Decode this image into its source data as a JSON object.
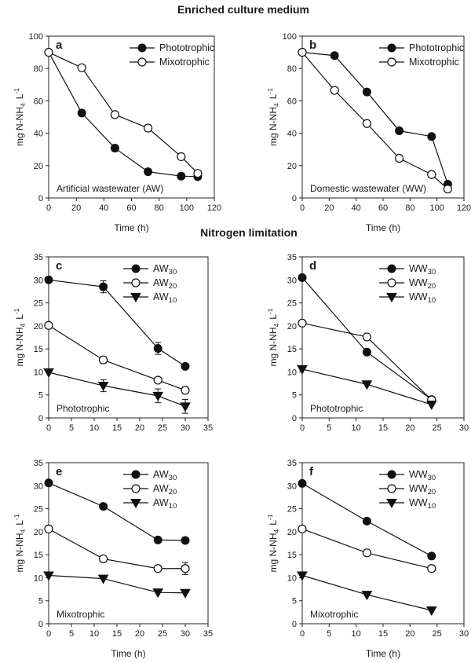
{
  "headings": [
    "Enriched culture medium",
    "Nitrogen limitation"
  ],
  "chart_data": [
    {
      "id": "a",
      "type": "line",
      "panel_label": "a",
      "xlabel": "Time (h)",
      "ylabel": "mg N-NH4 L-1",
      "ylabel_main": "mg N-NH",
      "ylabel_sub": "4",
      "ylabel_tail": "L",
      "ylabel_sup": "-1",
      "xlim": [
        0,
        120
      ],
      "ylim": [
        0,
        100
      ],
      "xticks": [
        0,
        20,
        40,
        60,
        80,
        100,
        120
      ],
      "yticks": [
        0,
        20,
        40,
        60,
        80,
        100
      ],
      "legend_position": "top-right",
      "annotation": "Artificial wastewater (AW)",
      "annotation_position": "bottom-left",
      "series": [
        {
          "name": "Phototrophic",
          "marker": "circle-filled",
          "x": [
            0,
            24,
            48,
            72,
            96,
            108
          ],
          "y": [
            90,
            52.5,
            30.8,
            16.2,
            13.5,
            13.2
          ],
          "err": [
            0,
            0,
            0,
            1.5,
            0,
            1.5
          ]
        },
        {
          "name": "Mixotrophic",
          "marker": "circle-open",
          "x": [
            0,
            24,
            48,
            72,
            96,
            108
          ],
          "y": [
            90,
            80.5,
            51.5,
            43.2,
            25.5,
            15.2
          ],
          "err": [
            0,
            0,
            0,
            0,
            0,
            0
          ]
        }
      ]
    },
    {
      "id": "b",
      "type": "line",
      "panel_label": "b",
      "xlabel": "Time (h)",
      "ylabel": "mg N-NH4 L-1",
      "ylabel_main": "mg N-NH",
      "ylabel_sub": "4",
      "ylabel_tail": "L",
      "ylabel_sup": "-1",
      "xlim": [
        0,
        120
      ],
      "ylim": [
        0,
        100
      ],
      "xticks": [
        0,
        20,
        40,
        60,
        80,
        100,
        120
      ],
      "yticks": [
        0,
        20,
        40,
        60,
        80,
        100
      ],
      "legend_position": "top-right",
      "annotation": "Domestic wastewater (WW)",
      "annotation_position": "bottom-left",
      "series": [
        {
          "name": "Phototrophic",
          "marker": "circle-filled",
          "x": [
            0,
            24,
            48,
            72,
            96,
            108
          ],
          "y": [
            90,
            88,
            65.5,
            41.5,
            38,
            8.5
          ],
          "err": [
            0,
            0,
            0,
            0,
            0,
            0
          ]
        },
        {
          "name": "Mixotrophic",
          "marker": "circle-open",
          "x": [
            0,
            24,
            48,
            72,
            96,
            108
          ],
          "y": [
            90,
            66.5,
            46,
            24.5,
            14.5,
            5.5
          ],
          "err": [
            0,
            0,
            0,
            0,
            0,
            0
          ]
        }
      ]
    },
    {
      "id": "c",
      "type": "line",
      "panel_label": "c",
      "xlabel": "",
      "ylabel": "mg N-NH4 L-1",
      "ylabel_main": "mg N-NH",
      "ylabel_sub": "4",
      "ylabel_tail": "L",
      "ylabel_sup": "-1",
      "xlim": [
        0,
        35
      ],
      "ylim": [
        0,
        35
      ],
      "xticks": [
        0,
        5,
        10,
        15,
        20,
        25,
        30,
        35
      ],
      "yticks": [
        0,
        5,
        10,
        15,
        20,
        25,
        30,
        35
      ],
      "legend_position": "top-right",
      "annotation": "Phototrophic",
      "annotation_position": "bottom-left",
      "series": [
        {
          "name": "AW30",
          "name_main": "AW",
          "name_sub": "30",
          "marker": "circle-filled",
          "x": [
            0,
            12,
            24,
            30
          ],
          "y": [
            30,
            28.5,
            15.1,
            11.2
          ],
          "err": [
            0,
            1.3,
            1.3,
            0.6
          ]
        },
        {
          "name": "AW20",
          "name_main": "AW",
          "name_sub": "20",
          "marker": "circle-open",
          "x": [
            0,
            12,
            24,
            30
          ],
          "y": [
            20.1,
            12.6,
            8.2,
            6.0
          ],
          "err": [
            0,
            0.7,
            0.6,
            0.7
          ]
        },
        {
          "name": "AW10",
          "name_main": "AW",
          "name_sub": "10",
          "marker": "triangle-down",
          "x": [
            0,
            12,
            24,
            30
          ],
          "y": [
            9.9,
            7.0,
            4.8,
            2.5
          ],
          "err": [
            0,
            1.3,
            1.5,
            1.5
          ]
        }
      ]
    },
    {
      "id": "d",
      "type": "line",
      "panel_label": "d",
      "xlabel": "",
      "ylabel": "mg N-NH4 L-1",
      "ylabel_main": "mg N-NH",
      "ylabel_sub": "4",
      "ylabel_tail": "L",
      "ylabel_sup": "-1",
      "xlim": [
        0,
        30
      ],
      "ylim": [
        0,
        35
      ],
      "xticks": [
        0,
        5,
        10,
        15,
        20,
        25,
        30
      ],
      "yticks": [
        0,
        5,
        10,
        15,
        20,
        25,
        30,
        35
      ],
      "legend_position": "top-right",
      "annotation": "Phototrophic",
      "annotation_position": "bottom-left",
      "series": [
        {
          "name": "WW30",
          "name_main": "WW",
          "name_sub": "30",
          "marker": "circle-filled",
          "x": [
            0,
            12,
            24
          ],
          "y": [
            30.5,
            14.3,
            4.0
          ],
          "err": [
            0,
            0.5,
            0
          ]
        },
        {
          "name": "WW20",
          "name_main": "WW",
          "name_sub": "20",
          "marker": "circle-open",
          "x": [
            0,
            12,
            24
          ],
          "y": [
            20.6,
            17.6,
            3.9
          ],
          "err": [
            0,
            0.6,
            0
          ]
        },
        {
          "name": "WW10",
          "name_main": "WW",
          "name_sub": "10",
          "marker": "triangle-down",
          "x": [
            0,
            12,
            24
          ],
          "y": [
            10.6,
            7.3,
            2.9
          ],
          "err": [
            0,
            0,
            0
          ]
        }
      ]
    },
    {
      "id": "e",
      "type": "line",
      "panel_label": "e",
      "xlabel": "Time (h)",
      "ylabel": "mg N-NH4 L-1",
      "ylabel_main": "mg N-NH",
      "ylabel_sub": "4",
      "ylabel_tail": "L",
      "ylabel_sup": "-1",
      "xlim": [
        0,
        35
      ],
      "ylim": [
        0,
        35
      ],
      "xticks": [
        0,
        5,
        10,
        15,
        20,
        25,
        30,
        35
      ],
      "yticks": [
        0,
        5,
        10,
        15,
        20,
        25,
        30,
        35
      ],
      "legend_position": "top-right",
      "annotation": "Mixotrophic",
      "annotation_position": "bottom-left",
      "series": [
        {
          "name": "AW30",
          "name_main": "AW",
          "name_sub": "30",
          "marker": "circle-filled",
          "x": [
            0,
            12,
            24,
            30
          ],
          "y": [
            30.6,
            25.5,
            18.2,
            18.1
          ],
          "err": [
            0,
            0.5,
            0.5,
            0
          ]
        },
        {
          "name": "AW20",
          "name_main": "AW",
          "name_sub": "20",
          "marker": "circle-open",
          "x": [
            0,
            12,
            24,
            30
          ],
          "y": [
            20.6,
            14.1,
            12.0,
            12.0
          ],
          "err": [
            0,
            0.6,
            0.6,
            1.3
          ]
        },
        {
          "name": "AW10",
          "name_main": "AW",
          "name_sub": "10",
          "marker": "triangle-down",
          "x": [
            0,
            12,
            24,
            30
          ],
          "y": [
            10.5,
            9.8,
            6.8,
            6.7
          ],
          "err": [
            0,
            0,
            0,
            0
          ]
        }
      ]
    },
    {
      "id": "f",
      "type": "line",
      "panel_label": "f",
      "xlabel": "Time (h)",
      "ylabel": "mg N-NH4 L-1",
      "ylabel_main": "mg N-NH",
      "ylabel_sub": "4",
      "ylabel_tail": "L",
      "ylabel_sup": "-1",
      "xlim": [
        0,
        30
      ],
      "ylim": [
        0,
        35
      ],
      "xticks": [
        0,
        5,
        10,
        15,
        20,
        25,
        30
      ],
      "yticks": [
        0,
        5,
        10,
        15,
        20,
        25,
        30,
        35
      ],
      "legend_position": "top-right",
      "annotation": "Mixotrophic",
      "annotation_position": "bottom-left",
      "series": [
        {
          "name": "WW30",
          "name_main": "WW",
          "name_sub": "30",
          "marker": "circle-filled",
          "x": [
            0,
            12,
            24
          ],
          "y": [
            30.5,
            22.3,
            14.7
          ],
          "err": [
            0,
            0.5,
            0.6
          ]
        },
        {
          "name": "WW20",
          "name_main": "WW",
          "name_sub": "20",
          "marker": "circle-open",
          "x": [
            0,
            12,
            24
          ],
          "y": [
            20.6,
            15.4,
            12.0
          ],
          "err": [
            0,
            0.5,
            0.6
          ]
        },
        {
          "name": "WW10",
          "name_main": "WW",
          "name_sub": "10",
          "marker": "triangle-down",
          "x": [
            0,
            12,
            24
          ],
          "y": [
            10.5,
            6.3,
            2.9
          ],
          "err": [
            0,
            0,
            0
          ]
        }
      ]
    }
  ]
}
